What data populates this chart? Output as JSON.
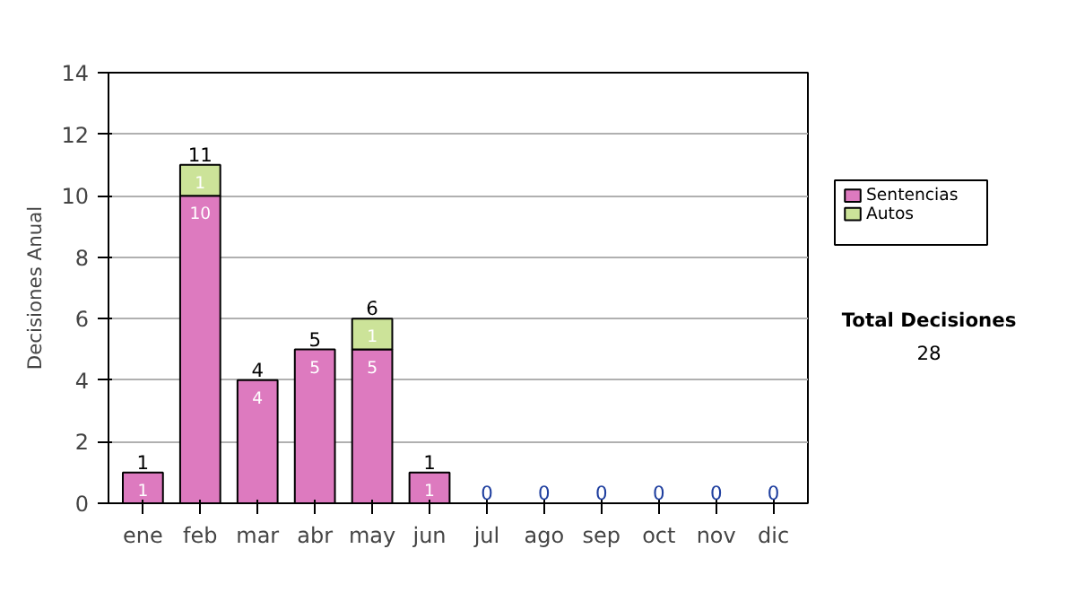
{
  "chart_data": {
    "type": "bar",
    "stacked": true,
    "ylabel": "Decisiones Anual",
    "categories": [
      "ene",
      "feb",
      "mar",
      "abr",
      "may",
      "jun",
      "jul",
      "ago",
      "sep",
      "oct",
      "nov",
      "dic"
    ],
    "series": [
      {
        "name": "Sentencias",
        "color": "#dd7abf",
        "values": [
          1,
          10,
          4,
          5,
          5,
          1,
          0,
          0,
          0,
          0,
          0,
          0
        ],
        "value_labels": [
          "1",
          "10",
          "4",
          "5",
          "5",
          "1",
          null,
          null,
          null,
          null,
          null,
          null
        ]
      },
      {
        "name": "Autos",
        "color": "#cce399",
        "values": [
          0,
          1,
          0,
          0,
          1,
          0,
          0,
          0,
          0,
          0,
          0,
          0
        ],
        "value_labels": [
          null,
          "1",
          null,
          null,
          "1",
          null,
          null,
          null,
          null,
          null,
          null,
          null
        ]
      }
    ],
    "totals": [
      "1",
      "11",
      "4",
      "5",
      "6",
      "1",
      "0",
      "0",
      "0",
      "0",
      "0",
      "0"
    ],
    "ylim": [
      0,
      14
    ],
    "yticks": [
      0,
      2,
      4,
      6,
      8,
      10,
      12,
      14
    ],
    "grid": "y",
    "legend": "right",
    "annotations": [
      "Total Decisiones",
      "28"
    ]
  }
}
